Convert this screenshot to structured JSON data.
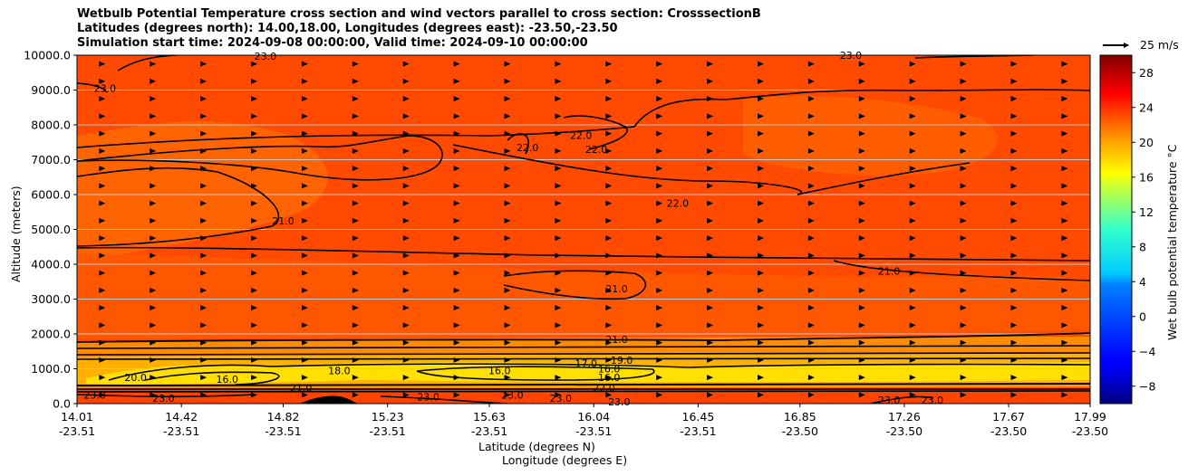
{
  "title_lines": [
    "Wetbulb Potential Temperature cross section and wind vectors parallel to cross section: CrosssectionB",
    "Latitudes (degrees north): 14.00,18.00, Longitudes (degrees east): -23.50,-23.50",
    "Simulation start time: 2024-09-08 00:00:00, Valid time: 2024-09-10 00:00:00"
  ],
  "chart_data": {
    "type": "heatmap",
    "subtype": "filled contour cross-section with contour lines and wind vectors",
    "ylabel": "Altitude (meters)",
    "xlabel": "Latitude (degrees N)",
    "xlabel2": "Longitude (degrees E)",
    "ylim": [
      0,
      10000
    ],
    "yticks": [
      "0.0",
      "1000.0",
      "2000.0",
      "3000.0",
      "4000.0",
      "5000.0",
      "6000.0",
      "7000.0",
      "8000.0",
      "9000.0",
      "10000.0"
    ],
    "ytick_values": [
      0,
      1000,
      2000,
      3000,
      4000,
      5000,
      6000,
      7000,
      8000,
      9000,
      10000
    ],
    "xlim": [
      14.01,
      17.99
    ],
    "xticks": [
      {
        "lat": "14.01",
        "lon": "-23.51"
      },
      {
        "lat": "14.42",
        "lon": "-23.51"
      },
      {
        "lat": "14.82",
        "lon": "-23.51"
      },
      {
        "lat": "15.23",
        "lon": "-23.51"
      },
      {
        "lat": "15.63",
        "lon": "-23.51"
      },
      {
        "lat": "16.04",
        "lon": "-23.51"
      },
      {
        "lat": "16.45",
        "lon": "-23.51"
      },
      {
        "lat": "16.85",
        "lon": "-23.50"
      },
      {
        "lat": "17.26",
        "lon": "-23.50"
      },
      {
        "lat": "17.67",
        "lon": "-23.50"
      },
      {
        "lat": "17.99",
        "lon": "-23.50"
      }
    ],
    "grid": "horizontal lines at y ticks",
    "colorbar": {
      "label": "Wet bulb potential temperature $^\\circ$C",
      "ticks": [
        "−8",
        "−4",
        "0",
        "4",
        "8",
        "12",
        "16",
        "20",
        "24",
        "28"
      ],
      "tick_values": [
        -8,
        -4,
        0,
        4,
        8,
        12,
        16,
        20,
        24,
        28
      ],
      "range": [
        -10,
        30
      ],
      "colormap": "jet"
    },
    "quiver_key": {
      "label": "25 m/s",
      "speed": 25
    },
    "wind": {
      "direction": "left-to-right along cross section",
      "rows": 20,
      "cols": 20,
      "speed_typical": 6
    },
    "contour_labels": [
      {
        "text": "23.0",
        "x": 14.75,
        "y": 9980
      },
      {
        "text": "23.0",
        "x": 17.05,
        "y": 10000
      },
      {
        "text": "23.0",
        "x": 14.12,
        "y": 9050
      },
      {
        "text": "22.0",
        "x": 15.78,
        "y": 7350
      },
      {
        "text": "22.0",
        "x": 15.99,
        "y": 7700
      },
      {
        "text": "22.0",
        "x": 16.05,
        "y": 7300
      },
      {
        "text": "22.0",
        "x": 16.37,
        "y": 5750
      },
      {
        "text": "21.0",
        "x": 14.82,
        "y": 5250
      },
      {
        "text": "21.0",
        "x": 16.13,
        "y": 3300
      },
      {
        "text": "21.0",
        "x": 17.2,
        "y": 3800
      },
      {
        "text": "21.0",
        "x": 16.13,
        "y": 1850
      },
      {
        "text": "19.0",
        "x": 16.15,
        "y": 1250
      },
      {
        "text": "17.0",
        "x": 16.01,
        "y": 1150
      },
      {
        "text": "16.0",
        "x": 16.1,
        "y": 1000
      },
      {
        "text": "16.0",
        "x": 16.1,
        "y": 750
      },
      {
        "text": "22.0",
        "x": 16.08,
        "y": 450
      },
      {
        "text": "23.0",
        "x": 16.14,
        "y": 50
      },
      {
        "text": "16.0",
        "x": 14.6,
        "y": 700
      },
      {
        "text": "20.0",
        "x": 14.24,
        "y": 750
      },
      {
        "text": "21.0",
        "x": 14.89,
        "y": 450
      },
      {
        "text": "18.0",
        "x": 15.04,
        "y": 950
      },
      {
        "text": "16.0",
        "x": 15.67,
        "y": 950
      },
      {
        "text": "23.0",
        "x": 14.08,
        "y": 250
      },
      {
        "text": "23.0",
        "x": 14.35,
        "y": 150
      },
      {
        "text": "23.0",
        "x": 15.39,
        "y": 200
      },
      {
        "text": "23.0",
        "x": 15.72,
        "y": 250
      },
      {
        "text": "23.0",
        "x": 15.91,
        "y": 150
      },
      {
        "text": "23.0",
        "x": 17.2,
        "y": 100
      },
      {
        "text": "23.0",
        "x": 17.37,
        "y": 100
      }
    ],
    "colors": {
      "background_dominant": "#ff4a00",
      "warm_band": "#ff6e00",
      "low_level_core": "#ffee00",
      "contour_line": "#000000"
    }
  }
}
